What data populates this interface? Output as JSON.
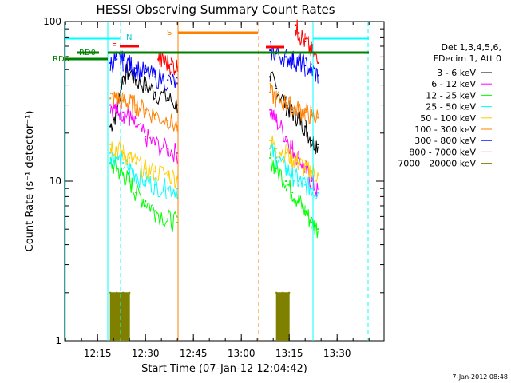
{
  "chart_data": {
    "type": "line",
    "title": "HESSI Observing Summary Count Rates",
    "xlabel": "Start Time (07-Jan-12 12:04:42)",
    "ylabel": "Count Rate (s⁻¹ detector⁻¹)",
    "yscale": "log",
    "ylim": [
      1,
      100
    ],
    "xlim": [
      "12:04:42",
      "13:44:42"
    ],
    "x_ticks": [
      "12:15",
      "12:30",
      "12:45",
      "13:00",
      "13:15",
      "13:30"
    ],
    "y_ticks": [
      1,
      10,
      100
    ],
    "timestamp": "7-Jan-2012 08:48",
    "legend": {
      "placement": "right",
      "header": [
        "Det 1,3,4,5,6,",
        "FDecim 1, Att 0"
      ]
    },
    "series": [
      {
        "name": "3 - 6 keV",
        "color": "#000000",
        "x": [
          "12:19",
          "12:21",
          "12:23",
          "12:25",
          "12:27",
          "12:30",
          "12:33",
          "12:37",
          "12:40",
          "13:09",
          "13:11",
          "13:14",
          "13:16",
          "13:18",
          "13:20",
          "13:22",
          "13:24"
        ],
        "y": [
          22,
          27,
          45,
          50,
          43,
          40,
          36,
          33,
          30,
          45,
          38,
          30,
          27,
          25,
          22,
          18,
          17
        ]
      },
      {
        "name": "6 - 12 keV",
        "color": "#ff00ff",
        "x": [
          "12:19",
          "12:21",
          "12:23",
          "12:25",
          "12:27",
          "12:30",
          "12:33",
          "12:37",
          "12:40",
          "13:09",
          "13:11",
          "13:14",
          "13:16",
          "13:18",
          "13:20",
          "13:22",
          "13:24"
        ],
        "y": [
          30,
          28,
          27,
          25,
          22,
          19,
          17,
          16,
          15,
          28,
          24,
          19,
          16,
          14,
          12,
          10,
          8.5
        ]
      },
      {
        "name": "12 - 25 keV",
        "color": "#00ff00",
        "x": [
          "12:19",
          "12:21",
          "12:23",
          "12:25",
          "12:27",
          "12:30",
          "12:33",
          "12:37",
          "12:40",
          "13:09",
          "13:11",
          "13:14",
          "13:16",
          "13:18",
          "13:20",
          "13:22",
          "13:24"
        ],
        "y": [
          13,
          12,
          11,
          10,
          8.5,
          7.5,
          6.5,
          5.8,
          5.5,
          14,
          12,
          10,
          8.5,
          7.5,
          6.5,
          5.5,
          5
        ]
      },
      {
        "name": "25 - 50 keV",
        "color": "#00ffff",
        "x": [
          "12:19",
          "12:21",
          "12:23",
          "12:25",
          "12:27",
          "12:30",
          "12:33",
          "12:37",
          "12:40",
          "13:09",
          "13:11",
          "13:14",
          "13:16",
          "13:18",
          "13:20",
          "13:22",
          "13:24"
        ],
        "y": [
          15,
          14,
          13,
          12,
          11,
          10,
          9.5,
          9,
          9,
          16,
          14,
          12,
          11,
          10,
          9.5,
          9,
          8.5
        ]
      },
      {
        "name": "50 - 100 keV",
        "color": "#ffcc00",
        "x": [
          "12:19",
          "12:21",
          "12:23",
          "12:25",
          "12:27",
          "12:30",
          "12:33",
          "12:37",
          "12:40",
          "13:09",
          "13:11",
          "13:14",
          "13:16",
          "13:18",
          "13:20",
          "13:22",
          "13:24"
        ],
        "y": [
          17,
          16,
          15,
          14,
          13,
          12,
          11.5,
          11,
          10.5,
          18,
          16,
          15,
          14,
          13,
          12,
          11.5,
          11
        ]
      },
      {
        "name": "100 - 300 keV",
        "color": "#ff7f00",
        "x": [
          "12:19",
          "12:21",
          "12:23",
          "12:25",
          "12:27",
          "12:30",
          "12:33",
          "12:37",
          "12:40",
          "13:09",
          "13:11",
          "13:14",
          "13:16",
          "13:18",
          "13:20",
          "13:22",
          "13:24"
        ],
        "y": [
          33,
          33,
          32,
          31,
          30,
          28,
          26,
          24,
          22,
          36,
          33,
          31,
          29,
          28,
          27,
          26,
          25
        ]
      },
      {
        "name": "300 - 800 keV",
        "color": "#0000ff",
        "x": [
          "12:19",
          "12:21",
          "12:23",
          "12:25",
          "12:27",
          "12:30",
          "12:33",
          "12:37",
          "12:40",
          "13:09",
          "13:11",
          "13:14",
          "13:16",
          "13:18",
          "13:20",
          "13:22",
          "13:24"
        ],
        "y": [
          55,
          58,
          57,
          54,
          51,
          48,
          45,
          43,
          41,
          66,
          63,
          60,
          58,
          56,
          53,
          50,
          46
        ]
      },
      {
        "name": "800 - 7000 keV",
        "color": "#ff0000",
        "x": [
          "12:34",
          "12:36",
          "12:38",
          "12:40",
          "13:17",
          "13:18",
          "13:20",
          "13:22",
          "13:24"
        ],
        "y": [
          58,
          56,
          54,
          52,
          95,
          85,
          75,
          65,
          55
        ]
      },
      {
        "name": "7000 - 20000 keV",
        "color": "#808000",
        "x": [
          "12:19",
          "12:21",
          "12:23",
          "12:25",
          "13:11",
          "13:13",
          "13:15"
        ],
        "y": [
          2,
          2,
          2,
          2,
          2,
          2,
          2
        ]
      }
    ],
    "annotations": [
      {
        "text": "RD0",
        "color": "#008000"
      },
      {
        "text": "RD6",
        "color": "#008000"
      },
      {
        "text": "F",
        "color": "#ff0000"
      },
      {
        "text": "N",
        "color": "#00cccc"
      },
      {
        "text": "S",
        "color": "#ff7f00"
      }
    ]
  }
}
